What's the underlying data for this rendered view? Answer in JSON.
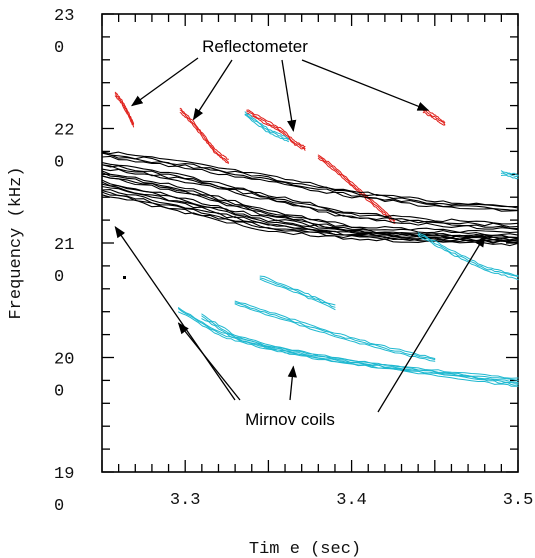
{
  "chart_data": {
    "type": "line",
    "title": "",
    "xlabel": "Tim e (sec)",
    "ylabel": "Frequency (kHz)",
    "xlim": [
      3.25,
      3.5
    ],
    "ylim": [
      190,
      230
    ],
    "x_ticks": [
      {
        "value": 3.3,
        "label": "3.3"
      },
      {
        "value": 3.4,
        "label": "3.4"
      },
      {
        "value": 3.5,
        "label": "3.5"
      }
    ],
    "y_ticks": [
      {
        "value": 230,
        "line1": "23",
        "line2": "0"
      },
      {
        "value": 220,
        "line1": "22",
        "line2": "0"
      },
      {
        "value": 210,
        "line1": "21",
        "line2": "0"
      },
      {
        "value": 200,
        "line1": "20",
        "line2": "0"
      },
      {
        "value": 190,
        "line1": "19",
        "line2": "0"
      }
    ],
    "annotations": {
      "top": "Reflectometer",
      "bottom": "Mirnov coils"
    },
    "colors": {
      "reflectometer": "#e0201b",
      "mirnov_black": "#000000",
      "mirnov_cyan": "#1fb8d0"
    },
    "series": [
      {
        "group": "reflectometer",
        "color": "#e0201b",
        "segments": [
          [
            [
              3.258,
              223.0
            ],
            [
              3.262,
              222.3
            ],
            [
              3.266,
              221.2
            ],
            [
              3.269,
              220.3
            ]
          ],
          [
            [
              3.297,
              221.6
            ],
            [
              3.304,
              220.6
            ],
            [
              3.311,
              219.3
            ],
            [
              3.318,
              218.0
            ],
            [
              3.326,
              217.1
            ]
          ],
          [
            [
              3.337,
              221.5
            ],
            [
              3.348,
              220.6
            ],
            [
              3.358,
              219.8
            ],
            [
              3.366,
              218.7
            ],
            [
              3.372,
              218.3
            ]
          ],
          [
            [
              3.38,
              217.6
            ],
            [
              3.392,
              216.2
            ],
            [
              3.404,
              214.6
            ],
            [
              3.416,
              213.1
            ],
            [
              3.426,
              211.8
            ]
          ],
          [
            [
              3.443,
              221.6
            ],
            [
              3.449,
              221.1
            ],
            [
              3.456,
              220.4
            ]
          ]
        ]
      },
      {
        "group": "mirnov-black",
        "color": "#000000",
        "segments": [
          [
            [
              3.25,
              217.8
            ],
            [
              3.3,
              216.8
            ],
            [
              3.35,
              215.6
            ],
            [
              3.4,
              214.3
            ],
            [
              3.45,
              213.4
            ],
            [
              3.5,
              213.0
            ]
          ],
          [
            [
              3.25,
              216.8
            ],
            [
              3.3,
              215.6
            ],
            [
              3.35,
              214.0
            ],
            [
              3.4,
              212.4
            ],
            [
              3.45,
              211.8
            ],
            [
              3.5,
              211.4
            ]
          ],
          [
            [
              3.25,
              216.0
            ],
            [
              3.3,
              214.6
            ],
            [
              3.35,
              212.6
            ],
            [
              3.4,
              211.2
            ],
            [
              3.45,
              210.9
            ],
            [
              3.5,
              210.6
            ]
          ],
          [
            [
              3.25,
              215.2
            ],
            [
              3.3,
              213.6
            ],
            [
              3.35,
              211.9
            ],
            [
              3.4,
              210.8
            ],
            [
              3.45,
              210.5
            ],
            [
              3.5,
              210.3
            ]
          ],
          [
            [
              3.25,
              214.5
            ],
            [
              3.3,
              212.9
            ],
            [
              3.35,
              211.3
            ],
            [
              3.4,
              210.6
            ],
            [
              3.45,
              210.3
            ],
            [
              3.5,
              210.1
            ]
          ]
        ]
      },
      {
        "group": "mirnov-cyan",
        "color": "#1fb8d0",
        "segments": [
          [
            [
              3.336,
              221.3
            ],
            [
              3.35,
              219.8
            ],
            [
              3.362,
              219.0
            ]
          ],
          [
            [
              3.296,
              204.2
            ],
            [
              3.32,
              202.1
            ],
            [
              3.345,
              201.0
            ],
            [
              3.38,
              200.0
            ],
            [
              3.42,
              199.2
            ],
            [
              3.46,
              198.6
            ],
            [
              3.5,
              198.0
            ]
          ],
          [
            [
              3.31,
              203.6
            ],
            [
              3.33,
              201.8
            ],
            [
              3.36,
              200.6
            ],
            [
              3.4,
              199.6
            ],
            [
              3.44,
              198.8
            ],
            [
              3.48,
              198.0
            ],
            [
              3.5,
              197.6
            ]
          ],
          [
            [
              3.33,
              204.8
            ],
            [
              3.36,
              203.4
            ],
            [
              3.39,
              202.0
            ],
            [
              3.42,
              200.8
            ],
            [
              3.45,
              199.8
            ]
          ],
          [
            [
              3.345,
              207.0
            ],
            [
              3.37,
              205.6
            ],
            [
              3.39,
              204.4
            ]
          ],
          [
            [
              3.44,
              210.8
            ],
            [
              3.46,
              209.2
            ],
            [
              3.48,
              207.8
            ],
            [
              3.5,
              207.0
            ]
          ],
          [
            [
              3.49,
              216.1
            ],
            [
              3.5,
              215.8
            ]
          ]
        ]
      }
    ]
  }
}
